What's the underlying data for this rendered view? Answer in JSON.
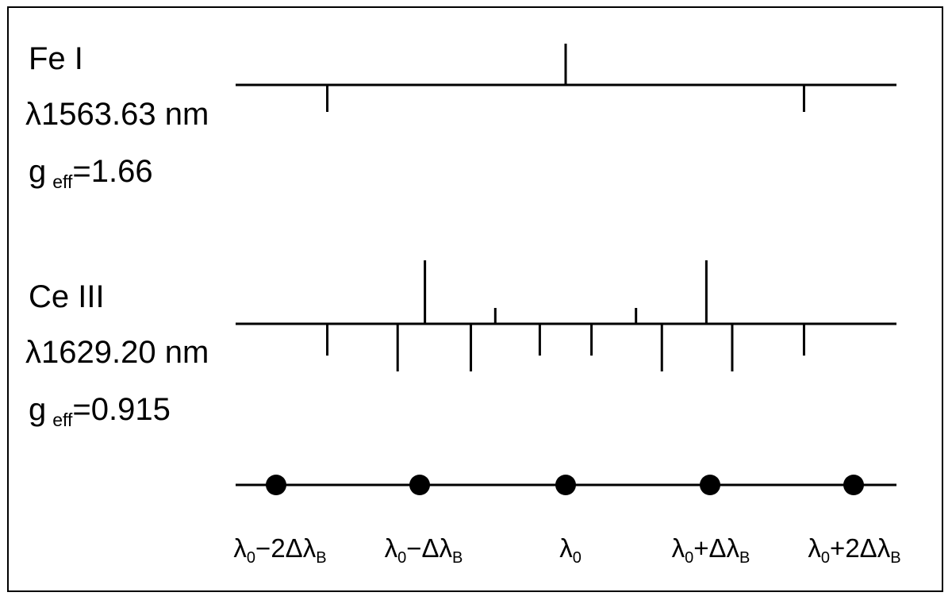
{
  "fe": {
    "name": "Fe I",
    "wavelength": "λ1563.63 nm",
    "g_symbol": "g",
    "g_sub": "eff",
    "g_value": "=1.66",
    "components_up": [
      {
        "offset": 0,
        "height": 52
      }
    ],
    "components_down": [
      {
        "offset": -1.66,
        "height": 34
      },
      {
        "offset": 1.66,
        "height": 34
      }
    ]
  },
  "ce": {
    "name": "Ce III",
    "wavelength": "λ1629.20 nm",
    "g_symbol": "g",
    "g_sub": "eff",
    "g_value": "=0.915",
    "components_up": [
      {
        "offset": -0.98,
        "height": 80
      },
      {
        "offset": -0.49,
        "height": 20
      },
      {
        "offset": 0.49,
        "height": 20
      },
      {
        "offset": 0.98,
        "height": 80
      }
    ],
    "components_down": [
      {
        "offset": -1.66,
        "height": 40
      },
      {
        "offset": -1.17,
        "height": 60
      },
      {
        "offset": -0.66,
        "height": 60
      },
      {
        "offset": -0.18,
        "height": 40
      },
      {
        "offset": 0.18,
        "height": 40
      },
      {
        "offset": 0.67,
        "height": 60
      },
      {
        "offset": 1.16,
        "height": 60
      },
      {
        "offset": 1.66,
        "height": 40
      }
    ]
  },
  "scale": {
    "points": [
      -2,
      -1,
      0,
      1,
      2
    ],
    "labels": [
      {
        "base": "λ",
        "sub0": "0",
        "mid": "−2Δλ",
        "subB": "B"
      },
      {
        "base": "λ",
        "sub0": "0",
        "mid": "−Δλ",
        "subB": "B"
      },
      {
        "base": "λ",
        "sub0": "0",
        "mid": "",
        "subB": ""
      },
      {
        "base": "λ",
        "sub0": "0",
        "mid": "+Δλ",
        "subB": "B"
      },
      {
        "base": "λ",
        "sub0": "0",
        "mid": "+2Δλ",
        "subB": "B"
      }
    ]
  }
}
